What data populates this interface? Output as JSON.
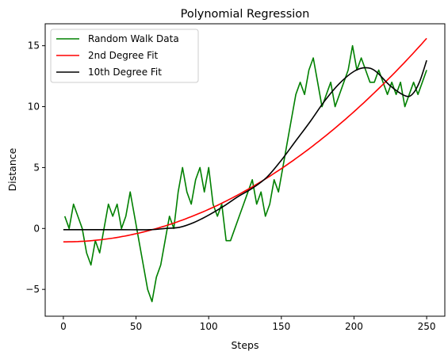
{
  "chart_data": {
    "type": "line",
    "title": "Polynomial Regression",
    "xlabel": "Steps",
    "ylabel": "Distance",
    "xlim": [
      -12.5,
      262.5
    ],
    "ylim": [
      -7.2,
      16.8
    ],
    "xticks": [
      0,
      50,
      100,
      150,
      200,
      250
    ],
    "yticks": [
      -5,
      0,
      5,
      10,
      15
    ],
    "grid": false,
    "legend_position": "top-left",
    "series": [
      {
        "name": "Random Walk Data",
        "color": "#008000",
        "kind": "step-walk",
        "x": [
          1,
          4,
          7,
          10,
          13,
          16,
          19,
          22,
          25,
          28,
          31,
          34,
          37,
          40,
          43,
          46,
          49,
          52,
          55,
          58,
          61,
          64,
          67,
          70,
          73,
          76,
          79,
          82,
          85,
          88,
          91,
          94,
          97,
          100,
          103,
          106,
          109,
          112,
          115,
          118,
          121,
          124,
          127,
          130,
          133,
          136,
          139,
          142,
          145,
          148,
          151,
          154,
          157,
          160,
          163,
          166,
          169,
          172,
          175,
          178,
          181,
          184,
          187,
          190,
          193,
          196,
          199,
          202,
          205,
          208,
          211,
          214,
          217,
          220,
          223,
          226,
          229,
          232,
          235,
          238,
          241,
          244,
          247,
          250
        ],
        "y": [
          1,
          0,
          2,
          1,
          0,
          -2,
          -3,
          -1,
          -2,
          0,
          2,
          1,
          2,
          0,
          1,
          3,
          1,
          -1,
          -3,
          -5,
          -6,
          -4,
          -3,
          -1,
          1,
          0,
          3,
          5,
          3,
          2,
          4,
          5,
          3,
          5,
          2,
          1,
          2,
          -1,
          -1,
          0,
          1,
          2,
          3,
          4,
          2,
          3,
          1,
          2,
          4,
          3,
          5,
          7,
          9,
          11,
          12,
          11,
          13,
          14,
          12,
          10,
          11,
          12,
          10,
          11,
          12,
          13,
          15,
          13,
          14,
          13,
          12,
          12,
          13,
          12,
          11,
          12,
          11,
          12,
          10,
          11,
          12,
          11,
          12,
          13
        ]
      },
      {
        "name": "2nd Degree Fit",
        "color": "#ff0000",
        "kind": "quadratic",
        "coefficients": [
          -1.1,
          0.0,
          0.0002672
        ]
      },
      {
        "name": "10th Degree Fit",
        "color": "#000000",
        "kind": "spline",
        "x": [
          0,
          20,
          40,
          60,
          70,
          80,
          90,
          100,
          110,
          120,
          130,
          140,
          150,
          160,
          170,
          180,
          190,
          200,
          208,
          215,
          225,
          235,
          240,
          245,
          250
        ],
        "y": [
          -0.1,
          -0.1,
          -0.1,
          -0.1,
          0.0,
          0.1,
          0.5,
          1.1,
          1.8,
          2.6,
          3.3,
          4.2,
          5.6,
          7.2,
          8.8,
          10.5,
          11.9,
          12.9,
          13.2,
          12.9,
          11.7,
          10.9,
          11.0,
          12.0,
          13.8
        ]
      }
    ]
  }
}
